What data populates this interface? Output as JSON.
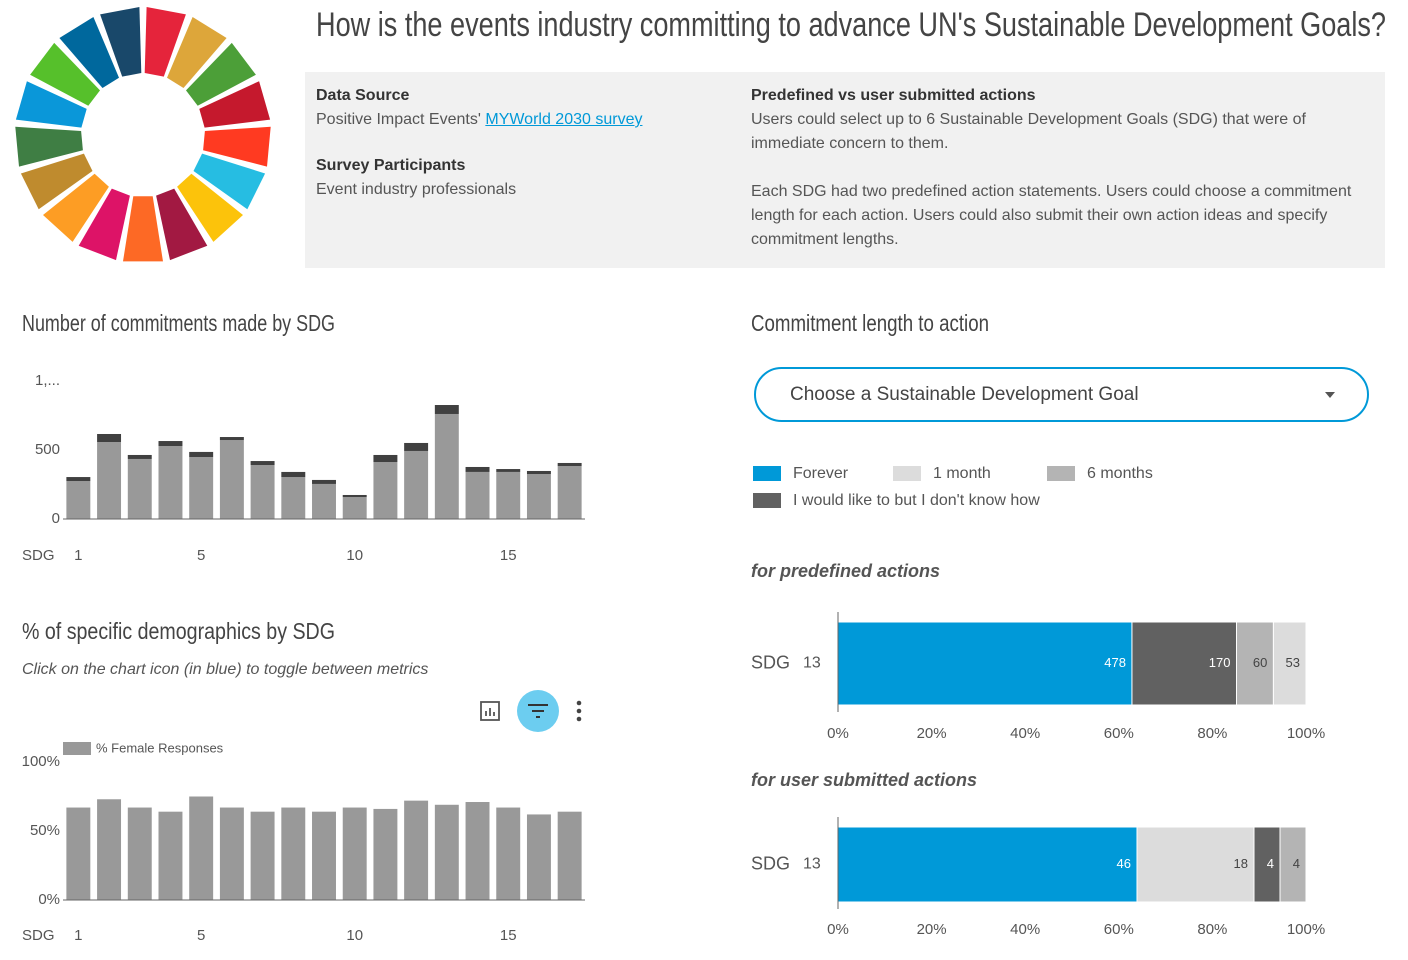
{
  "header": {
    "title": "How is the events industry committing to advance UN's Sustainable Development Goals?",
    "info": {
      "data_source_label": "Data Source",
      "data_source_text": "Positive Impact Events'",
      "data_source_link": "MYWorld 2030 survey",
      "participants_label": "Survey Participants",
      "participants_text": "Event industry professionals",
      "actions_label": "Predefined vs user submitted actions",
      "actions_paragraphs": [
        "Users could select up to 6 Sustainable Development Goals (SDG) that were of immediate concern to them.",
        "Each SDG had two predefined action statements. Users could choose a commitment length for each action. Users could also submit their own action ideas and specify commitment lengths."
      ]
    }
  },
  "controls": {
    "dropdown": "Choose a Sustainable Development Goal"
  },
  "legend": {
    "items": [
      {
        "name": "Forever",
        "color": "#0099d8"
      },
      {
        "name": "1 month",
        "color": "#dcdcdc"
      },
      {
        "name": "6 months",
        "color": "#b4b4b4"
      },
      {
        "name": "I would like to but I don't know how",
        "color": "#616161"
      }
    ]
  },
  "chart_data": [
    {
      "type": "bar",
      "stacking": "stacked",
      "title": "Number of commitments made by SDG",
      "x_label": "SDG",
      "x": [
        1,
        2,
        3,
        4,
        5,
        6,
        7,
        8,
        9,
        10,
        11,
        12,
        13,
        14,
        15,
        16,
        17
      ],
      "xlim": [
        0.5,
        17.5
      ],
      "xticks": [
        1,
        5,
        10,
        15
      ],
      "ylim": [
        0,
        1000
      ],
      "yticks": [
        0,
        500,
        {
          "value": 1000,
          "label": "1,..."
        }
      ],
      "series": [
        {
          "color": "#999999",
          "values": [
            275,
            558,
            435,
            529,
            449,
            572,
            391,
            304,
            254,
            159,
            413,
            493,
            761,
            341,
            341,
            326,
            384
          ]
        },
        {
          "color": "#404040",
          "values": [
            29,
            58,
            29,
            36,
            37,
            22,
            29,
            37,
            29,
            15,
            51,
            58,
            65,
            36,
            21,
            22,
            22
          ]
        }
      ]
    },
    {
      "type": "bar",
      "title": "% of specific demographics by SDG",
      "subtitle": "Click on the chart icon (in blue) to toggle between metrics",
      "x_label": "SDG",
      "x": [
        1,
        2,
        3,
        4,
        5,
        6,
        7,
        8,
        9,
        10,
        11,
        12,
        13,
        14,
        15,
        16,
        17
      ],
      "xlim": [
        0.5,
        17.5
      ],
      "xticks": [
        1,
        5,
        10,
        15
      ],
      "ylim": [
        0,
        100
      ],
      "yticks": [
        {
          "value": 0,
          "label": "0%"
        },
        {
          "value": 50,
          "label": "50%"
        },
        {
          "value": 100,
          "label": "100%"
        }
      ],
      "series": [
        {
          "name": "% Female Responses",
          "color": "#999999",
          "values": [
            67,
            73,
            67,
            64,
            75,
            67,
            64,
            67,
            64,
            67,
            66,
            72,
            69,
            71,
            67,
            62,
            64
          ]
        }
      ]
    },
    {
      "type": "bar",
      "orientation": "horizontal",
      "stacking": "percent",
      "title": "Commitment length to action",
      "subtitle": "for predefined actions",
      "y_label": "SDG",
      "categories": [
        "13"
      ],
      "xlim": [
        0,
        100
      ],
      "xticks": [
        {
          "value": 0,
          "label": "0%"
        },
        {
          "value": 20,
          "label": "20%"
        },
        {
          "value": 40,
          "label": "40%"
        },
        {
          "value": 60,
          "label": "60%"
        },
        {
          "value": 80,
          "label": "80%"
        },
        {
          "value": 100,
          "label": "100%"
        }
      ],
      "series": [
        {
          "color": "#0099d8",
          "values": [
            478
          ]
        },
        {
          "color": "#616161",
          "values": [
            170
          ]
        },
        {
          "color": "#b4b4b4",
          "values": [
            60
          ]
        },
        {
          "color": "#dcdcdc",
          "values": [
            53
          ]
        }
      ]
    },
    {
      "type": "bar",
      "orientation": "horizontal",
      "stacking": "percent",
      "subtitle": "for user submitted actions",
      "y_label": "SDG",
      "categories": [
        "13"
      ],
      "xlim": [
        0,
        100
      ],
      "xticks": [
        {
          "value": 0,
          "label": "0%"
        },
        {
          "value": 20,
          "label": "20%"
        },
        {
          "value": 40,
          "label": "40%"
        },
        {
          "value": 60,
          "label": "60%"
        },
        {
          "value": 80,
          "label": "80%"
        },
        {
          "value": 100,
          "label": "100%"
        }
      ],
      "series": [
        {
          "color": "#0099d8",
          "values": [
            46
          ]
        },
        {
          "color": "#dcdcdc",
          "values": [
            18
          ]
        },
        {
          "color": "#616161",
          "values": [
            4
          ]
        },
        {
          "color": "#b4b4b4",
          "values": [
            4
          ]
        }
      ]
    }
  ]
}
